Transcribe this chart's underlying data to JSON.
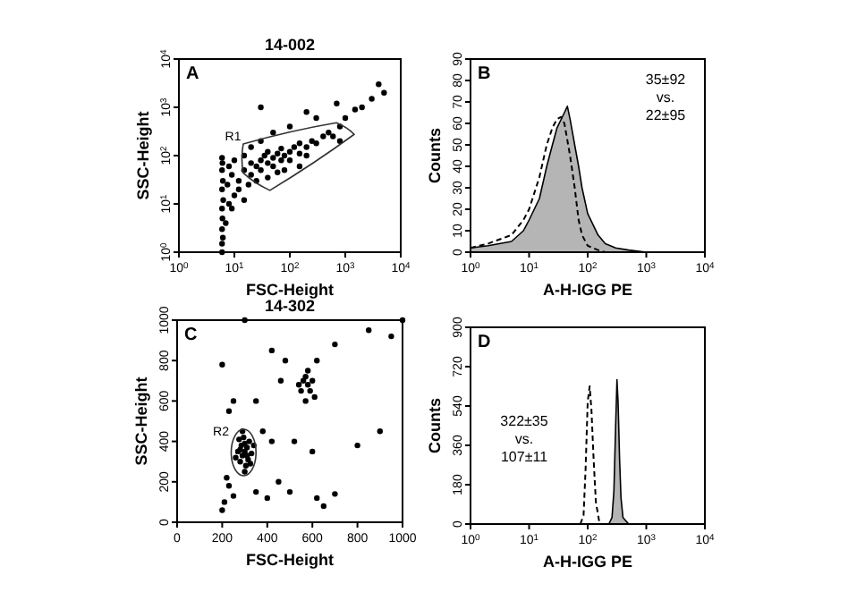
{
  "chart_data": [
    {
      "type": "scatter",
      "title": "14-002",
      "xlabel": "FSC-Height",
      "ylabel": "SSC-Height",
      "log": "xy",
      "marker": "circle",
      "annotations": [
        "A",
        "R1"
      ],
      "xlim": [
        1,
        10000
      ],
      "ylim": [
        1,
        10000
      ],
      "xticks": [
        {
          "value": 1,
          "label": "10$^{0}$"
        },
        {
          "value": 10,
          "label": "10$^{1}$"
        },
        {
          "value": 100,
          "label": "10$^{2}$"
        },
        {
          "value": 1000,
          "label": "10$^{3}$"
        },
        {
          "value": 10000,
          "label": "10$^{4}$"
        }
      ],
      "yticks": [
        {
          "value": 1,
          "label": "10$^{0}$"
        },
        {
          "value": 10,
          "label": "10$^{1}$"
        },
        {
          "value": 100,
          "label": "10$^{2}$"
        },
        {
          "value": 1000,
          "label": "10$^{3}$"
        },
        {
          "value": 10000,
          "label": "10$^{4}$"
        }
      ],
      "series": [
        {
          "type": "scatter",
          "color": "#000000",
          "x": [
            6,
            6,
            6.2,
            6,
            6.1,
            6,
            6.3,
            6,
            6.2,
            6,
            6.1,
            6,
            7,
            8,
            7.5,
            9,
            8,
            12,
            15,
            20,
            20,
            25,
            30,
            30,
            35,
            40,
            40,
            50,
            50,
            60,
            70,
            70,
            80,
            100,
            100,
            120,
            150,
            150,
            200,
            200,
            250,
            300,
            400,
            500,
            600,
            800,
            1000,
            2000,
            3000,
            1500,
            700,
            300,
            200,
            100,
            50,
            30,
            20,
            15,
            10,
            12,
            18,
            25,
            40,
            60,
            80,
            30,
            800,
            4000,
            5000,
            150,
            10,
            9,
            15
          ],
          "values": [
            1,
            1.5,
            2,
            3,
            5,
            8,
            12,
            20,
            30,
            50,
            70,
            90,
            4,
            10,
            25,
            40,
            60,
            30,
            50,
            40,
            70,
            60,
            80,
            50,
            100,
            70,
            120,
            90,
            60,
            110,
            80,
            140,
            100,
            120,
            80,
            150,
            110,
            180,
            150,
            100,
            200,
            180,
            250,
            300,
            250,
            400,
            600,
            1000,
            1500,
            900,
            1200,
            600,
            800,
            400,
            300,
            200,
            150,
            100,
            80,
            20,
            25,
            30,
            35,
            45,
            50,
            1000,
            200,
            3000,
            2000,
            60,
            15,
            8,
            12
          ]
        }
      ]
    },
    {
      "type": "line",
      "xlabel": "A-H-IGG PE",
      "ylabel": "Counts",
      "log": "x",
      "annotations": [
        "B",
        "35±92",
        "vs.",
        "22±95"
      ],
      "xlim": [
        1,
        10000
      ],
      "ylim": [
        0,
        90
      ],
      "xticks": [
        {
          "value": 1,
          "label": "10$^{0}$"
        },
        {
          "value": 10,
          "label": "10$^{1}$"
        },
        {
          "value": 100,
          "label": "10$^{2}$"
        },
        {
          "value": 1000,
          "label": "10$^{3}$"
        },
        {
          "value": 10000,
          "label": "10$^{4}$"
        }
      ],
      "yticks": [
        0,
        10,
        20,
        30,
        40,
        50,
        60,
        70,
        80,
        90
      ],
      "series": [
        {
          "type": "area",
          "color": "#b5b5b5",
          "x": [
            1,
            2,
            5,
            8,
            10,
            15,
            20,
            25,
            30,
            40,
            45,
            50,
            60,
            70,
            80,
            100,
            150,
            200,
            300,
            500,
            1000,
            10000
          ],
          "values": [
            2,
            3,
            5,
            10,
            15,
            25,
            40,
            50,
            58,
            65,
            68,
            62,
            50,
            40,
            30,
            18,
            8,
            4,
            2,
            1,
            0,
            0
          ]
        },
        {
          "type": "line",
          "color": "#000000",
          "line_style": "dashed",
          "x": [
            1,
            2,
            5,
            8,
            10,
            15,
            20,
            25,
            30,
            35,
            40,
            50,
            60,
            70,
            80,
            100,
            150,
            200,
            10000
          ],
          "values": [
            2,
            4,
            8,
            15,
            20,
            35,
            50,
            58,
            62,
            63,
            60,
            45,
            30,
            15,
            8,
            3,
            1,
            0,
            0
          ]
        }
      ]
    },
    {
      "type": "scatter",
      "title": "14-302",
      "xlabel": "FSC-Height",
      "ylabel": "SSC-Height",
      "marker": "circle",
      "annotations": [
        "C",
        "R2"
      ],
      "xlim": [
        0,
        1000
      ],
      "ylim": [
        0,
        1000
      ],
      "xticks": [
        0,
        200,
        400,
        600,
        800,
        1000
      ],
      "yticks": [
        0,
        200,
        400,
        600,
        800,
        1000
      ],
      "series": [
        {
          "type": "scatter",
          "color": "#000000",
          "x": [
            300,
            290,
            310,
            280,
            320,
            295,
            305,
            270,
            330,
            285,
            315,
            300,
            290,
            260,
            340,
            275,
            325,
            300,
            310,
            280,
            220,
            230,
            210,
            200,
            250,
            350,
            400,
            450,
            500,
            620,
            700,
            650,
            520,
            600,
            420,
            380,
            350,
            200,
            250,
            230,
            300,
            480,
            550,
            560,
            570,
            580,
            590,
            600,
            580,
            610,
            570,
            540,
            620,
            700,
            850,
            950,
            1000,
            900,
            800,
            420,
            460
          ],
          "values": [
            350,
            330,
            370,
            300,
            400,
            420,
            280,
            350,
            340,
            380,
            310,
            250,
            450,
            320,
            380,
            410,
            290,
            390,
            330,
            360,
            220,
            180,
            100,
            60,
            130,
            150,
            120,
            200,
            150,
            120,
            140,
            80,
            400,
            350,
            400,
            450,
            600,
            780,
            600,
            550,
            1000,
            800,
            650,
            700,
            720,
            680,
            650,
            700,
            750,
            620,
            600,
            680,
            800,
            880,
            950,
            920,
            1000,
            450,
            380,
            850,
            700
          ]
        }
      ]
    },
    {
      "type": "line",
      "xlabel": "A-H-IGG PE",
      "ylabel": "Counts",
      "log": "x",
      "annotations": [
        "D",
        "322±35",
        "vs.",
        "107±11"
      ],
      "xlim": [
        1,
        10000
      ],
      "ylim": [
        0,
        900
      ],
      "xticks": [
        {
          "value": 1,
          "label": "10$^{0}$"
        },
        {
          "value": 10,
          "label": "10$^{1}$"
        },
        {
          "value": 100,
          "label": "10$^{2}$"
        },
        {
          "value": 1000,
          "label": "10$^{3}$"
        },
        {
          "value": 10000,
          "label": "10$^{4}$"
        }
      ],
      "yticks": [
        0,
        180,
        360,
        540,
        720,
        900
      ],
      "series": [
        {
          "type": "area",
          "color": "#b5b5b5",
          "x": [
            230,
            260,
            280,
            300,
            316,
            330,
            350,
            370,
            400,
            500
          ],
          "values": [
            0,
            30,
            150,
            450,
            660,
            560,
            300,
            120,
            30,
            0
          ]
        },
        {
          "type": "line",
          "color": "#000000",
          "line_style": "dashed",
          "x": [
            75,
            85,
            92,
            100,
            108,
            116,
            126,
            138,
            160
          ],
          "values": [
            0,
            40,
            250,
            560,
            630,
            520,
            300,
            100,
            0
          ]
        }
      ]
    }
  ]
}
